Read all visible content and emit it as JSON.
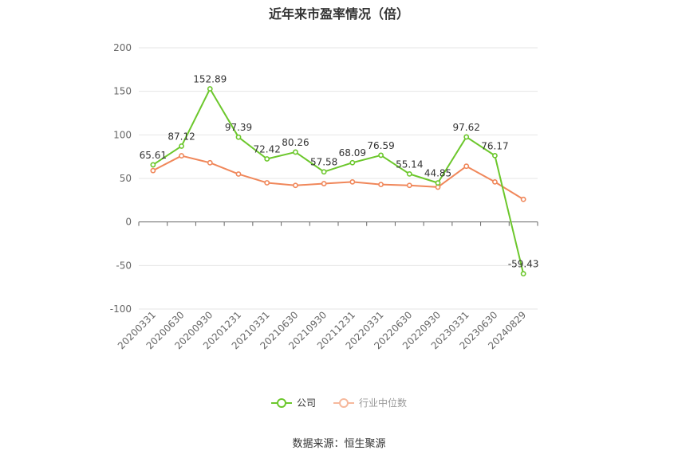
{
  "chart_data": {
    "type": "line",
    "title": "近年来市盈率情况（倍）",
    "categories": [
      "20200331",
      "20200630",
      "20200930",
      "20201231",
      "20210331",
      "20210630",
      "20210930",
      "20211231",
      "20220331",
      "20220630",
      "20220930",
      "20230331",
      "20230630",
      "20240829"
    ],
    "ylim": [
      -100,
      200
    ],
    "yticks": [
      200,
      150,
      100,
      50,
      0,
      -50,
      -100
    ],
    "grid": true,
    "legend_position": "bottom",
    "series": [
      {
        "name": "公司",
        "color": "#6cc72c",
        "values": [
          65.61,
          87.12,
          152.89,
          97.39,
          72.42,
          80.26,
          57.58,
          68.09,
          76.59,
          55.14,
          44.85,
          97.62,
          76.17,
          -59.43
        ],
        "labels": [
          "65.61",
          "87.12",
          "152.89",
          "97.39",
          "72.42",
          "80.26",
          "57.58",
          "68.09",
          "76.59",
          "55.14",
          "44.85",
          "97.62",
          "76.17",
          "-59.43"
        ]
      },
      {
        "name": "行业中位数",
        "color": "#f0875a",
        "values": [
          59,
          76,
          68,
          55,
          45,
          42,
          44,
          46,
          43,
          42,
          40,
          64,
          46,
          26
        ]
      }
    ]
  },
  "source": "数据来源：恒生聚源"
}
